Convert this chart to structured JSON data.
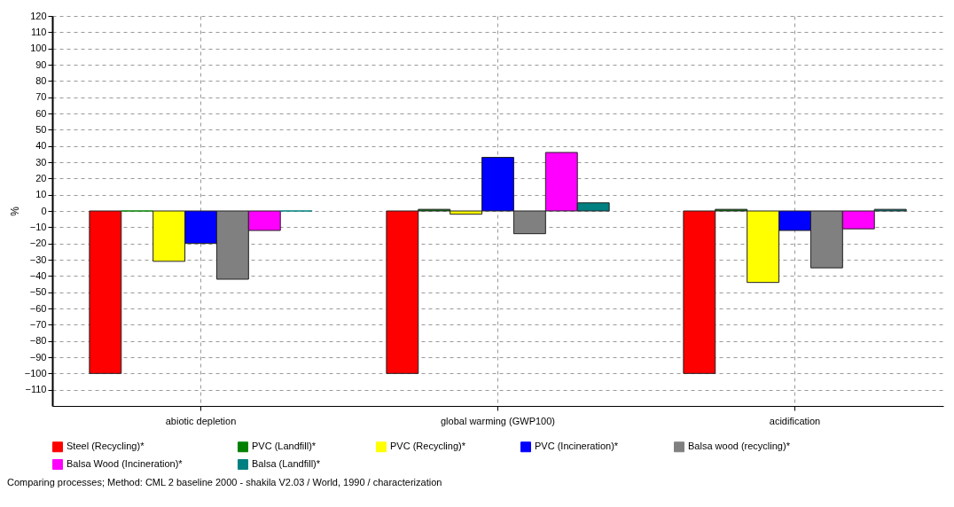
{
  "chart_data": {
    "type": "bar",
    "ylabel": "%",
    "categories": [
      "abiotic depletion",
      "global warming (GWP100)",
      "acidification"
    ],
    "series": [
      {
        "name": "Steel (Recycling)*",
        "color": "#ff0000",
        "values": [
          -100,
          -100,
          -100
        ]
      },
      {
        "name": "PVC (Landfill)*",
        "color": "#008000",
        "values": [
          0,
          1,
          1
        ]
      },
      {
        "name": "PVC (Recycling)*",
        "color": "#ffff00",
        "values": [
          -31,
          -2,
          -44
        ]
      },
      {
        "name": "PVC (Incineration)*",
        "color": "#0000ff",
        "values": [
          -20,
          33,
          -12
        ]
      },
      {
        "name": "Balsa wood (recycling)*",
        "color": "#808080",
        "values": [
          -42,
          -14,
          -35
        ]
      },
      {
        "name": "Balsa Wood (Incineration)*",
        "color": "#ff00ff",
        "values": [
          -12,
          36,
          -11
        ]
      },
      {
        "name": "Balsa (Landfill)*",
        "color": "#008080",
        "values": [
          0,
          5,
          1
        ]
      }
    ],
    "ylim": [
      -120,
      120
    ],
    "yticks": [
      -110,
      -100,
      -90,
      -80,
      -70,
      -60,
      -50,
      -40,
      -30,
      -20,
      -10,
      0,
      10,
      20,
      30,
      40,
      50,
      60,
      70,
      80,
      90,
      100,
      110,
      120
    ],
    "grid": true,
    "legend": "bottom",
    "annotations": [
      "Comparing processes;  Method: CML 2 baseline 2000 - shakila V2.03 /  World, 1990 / characterization"
    ]
  }
}
